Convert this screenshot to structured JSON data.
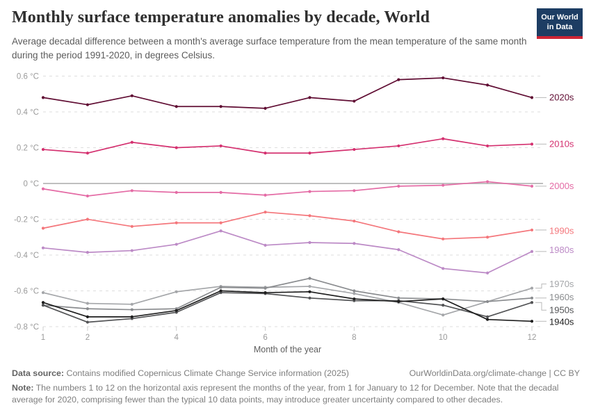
{
  "header": {
    "title": "Monthly surface temperature anomalies by decade, World",
    "subtitle": "Average decadal difference between a month's average surface temperature from the mean temperature of the same month during the period 1991-2020, in degrees Celsius."
  },
  "logo": {
    "line1": "Our World",
    "line2": "in Data",
    "bg": "#1d3d63",
    "stripe": "#cd2535"
  },
  "chart_data": {
    "type": "line",
    "x": [
      1,
      2,
      3,
      4,
      5,
      6,
      7,
      8,
      9,
      10,
      11,
      12
    ],
    "x_ticks": [
      1,
      2,
      4,
      6,
      8,
      10,
      12
    ],
    "xlabel": "Month of the year",
    "ylim": [
      -0.8,
      0.6
    ],
    "y_ticks": [
      {
        "value": 0.6,
        "label": "0.6 °C"
      },
      {
        "value": 0.4,
        "label": "0.4 °C"
      },
      {
        "value": 0.2,
        "label": "0.2 °C"
      },
      {
        "value": 0,
        "label": "0 °C"
      },
      {
        "value": -0.2,
        "label": "-0.2 °C"
      },
      {
        "value": -0.4,
        "label": "-0.4 °C"
      },
      {
        "value": -0.6,
        "label": "-0.6 °C"
      },
      {
        "value": -0.8,
        "label": "-0.8 °C"
      }
    ],
    "grid": "horizontal-dashed",
    "grid_color": "#dedede",
    "zero_line_color": "#b6b6b6",
    "tick_color": "#cdcdcd",
    "axis_text_color": "#9a9a9a",
    "axis_title_color": "#5f5f5f",
    "legend_position": "right-edge-labels",
    "series": [
      {
        "name": "2020s",
        "color": "#600d33",
        "label_dy": 0,
        "values": [
          0.48,
          0.44,
          0.49,
          0.43,
          0.43,
          0.42,
          0.48,
          0.46,
          0.58,
          0.59,
          0.55,
          0.48
        ]
      },
      {
        "name": "2010s",
        "color": "#d4306f",
        "label_dy": 0,
        "values": [
          0.19,
          0.17,
          0.23,
          0.2,
          0.21,
          0.17,
          0.17,
          0.19,
          0.21,
          0.25,
          0.21,
          0.22
        ]
      },
      {
        "name": "2000s",
        "color": "#e46ba5",
        "label_dy": 0,
        "values": [
          -0.03,
          -0.07,
          -0.04,
          -0.05,
          -0.05,
          -0.065,
          -0.045,
          -0.04,
          -0.015,
          -0.01,
          0.01,
          -0.015
        ]
      },
      {
        "name": "1990s",
        "color": "#f4767b",
        "label_dy": 1,
        "values": [
          -0.25,
          -0.2,
          -0.24,
          -0.22,
          -0.22,
          -0.16,
          -0.18,
          -0.21,
          -0.27,
          -0.31,
          -0.3,
          -0.26
        ]
      },
      {
        "name": "1980s",
        "color": "#bc8ac6",
        "label_dy": -2,
        "values": [
          -0.36,
          -0.385,
          -0.375,
          -0.34,
          -0.265,
          -0.345,
          -0.33,
          -0.335,
          -0.37,
          -0.475,
          -0.5,
          -0.38
        ]
      },
      {
        "name": "1970s",
        "color": "#a4a6a9",
        "label_dy": -6,
        "values": [
          -0.61,
          -0.67,
          -0.675,
          -0.605,
          -0.575,
          -0.58,
          -0.575,
          -0.615,
          -0.665,
          -0.735,
          -0.66,
          -0.585
        ]
      },
      {
        "name": "1960s",
        "color": "#8a8c8f",
        "label_dy": -1,
        "values": [
          -0.68,
          -0.7,
          -0.705,
          -0.7,
          -0.58,
          -0.585,
          -0.53,
          -0.6,
          -0.64,
          -0.645,
          -0.66,
          -0.64
        ]
      },
      {
        "name": "1950s",
        "color": "#525355",
        "label_dy": 11,
        "values": [
          -0.68,
          -0.775,
          -0.755,
          -0.72,
          -0.61,
          -0.615,
          -0.64,
          -0.655,
          -0.655,
          -0.68,
          -0.745,
          -0.665
        ]
      },
      {
        "name": "1940s",
        "color": "#1e1e1e",
        "label_dy": 1,
        "values": [
          -0.665,
          -0.745,
          -0.745,
          -0.71,
          -0.6,
          -0.61,
          -0.605,
          -0.645,
          -0.66,
          -0.645,
          -0.76,
          -0.77
        ]
      }
    ]
  },
  "footer": {
    "datasource_label": "Data source:",
    "datasource_text": "Contains modified Copernicus Climate Change Service information (2025)",
    "credit": "OurWorldinData.org/climate-change | CC BY",
    "note_label": "Note:",
    "note_text": "The numbers 1 to 12 on the horizontal axis represent the months of the year, from 1 for January to 12 for December. Note that the decadal average for 2020, comprising fewer than the typical 10 data points, may introduce greater uncertainty compared to other decades."
  }
}
